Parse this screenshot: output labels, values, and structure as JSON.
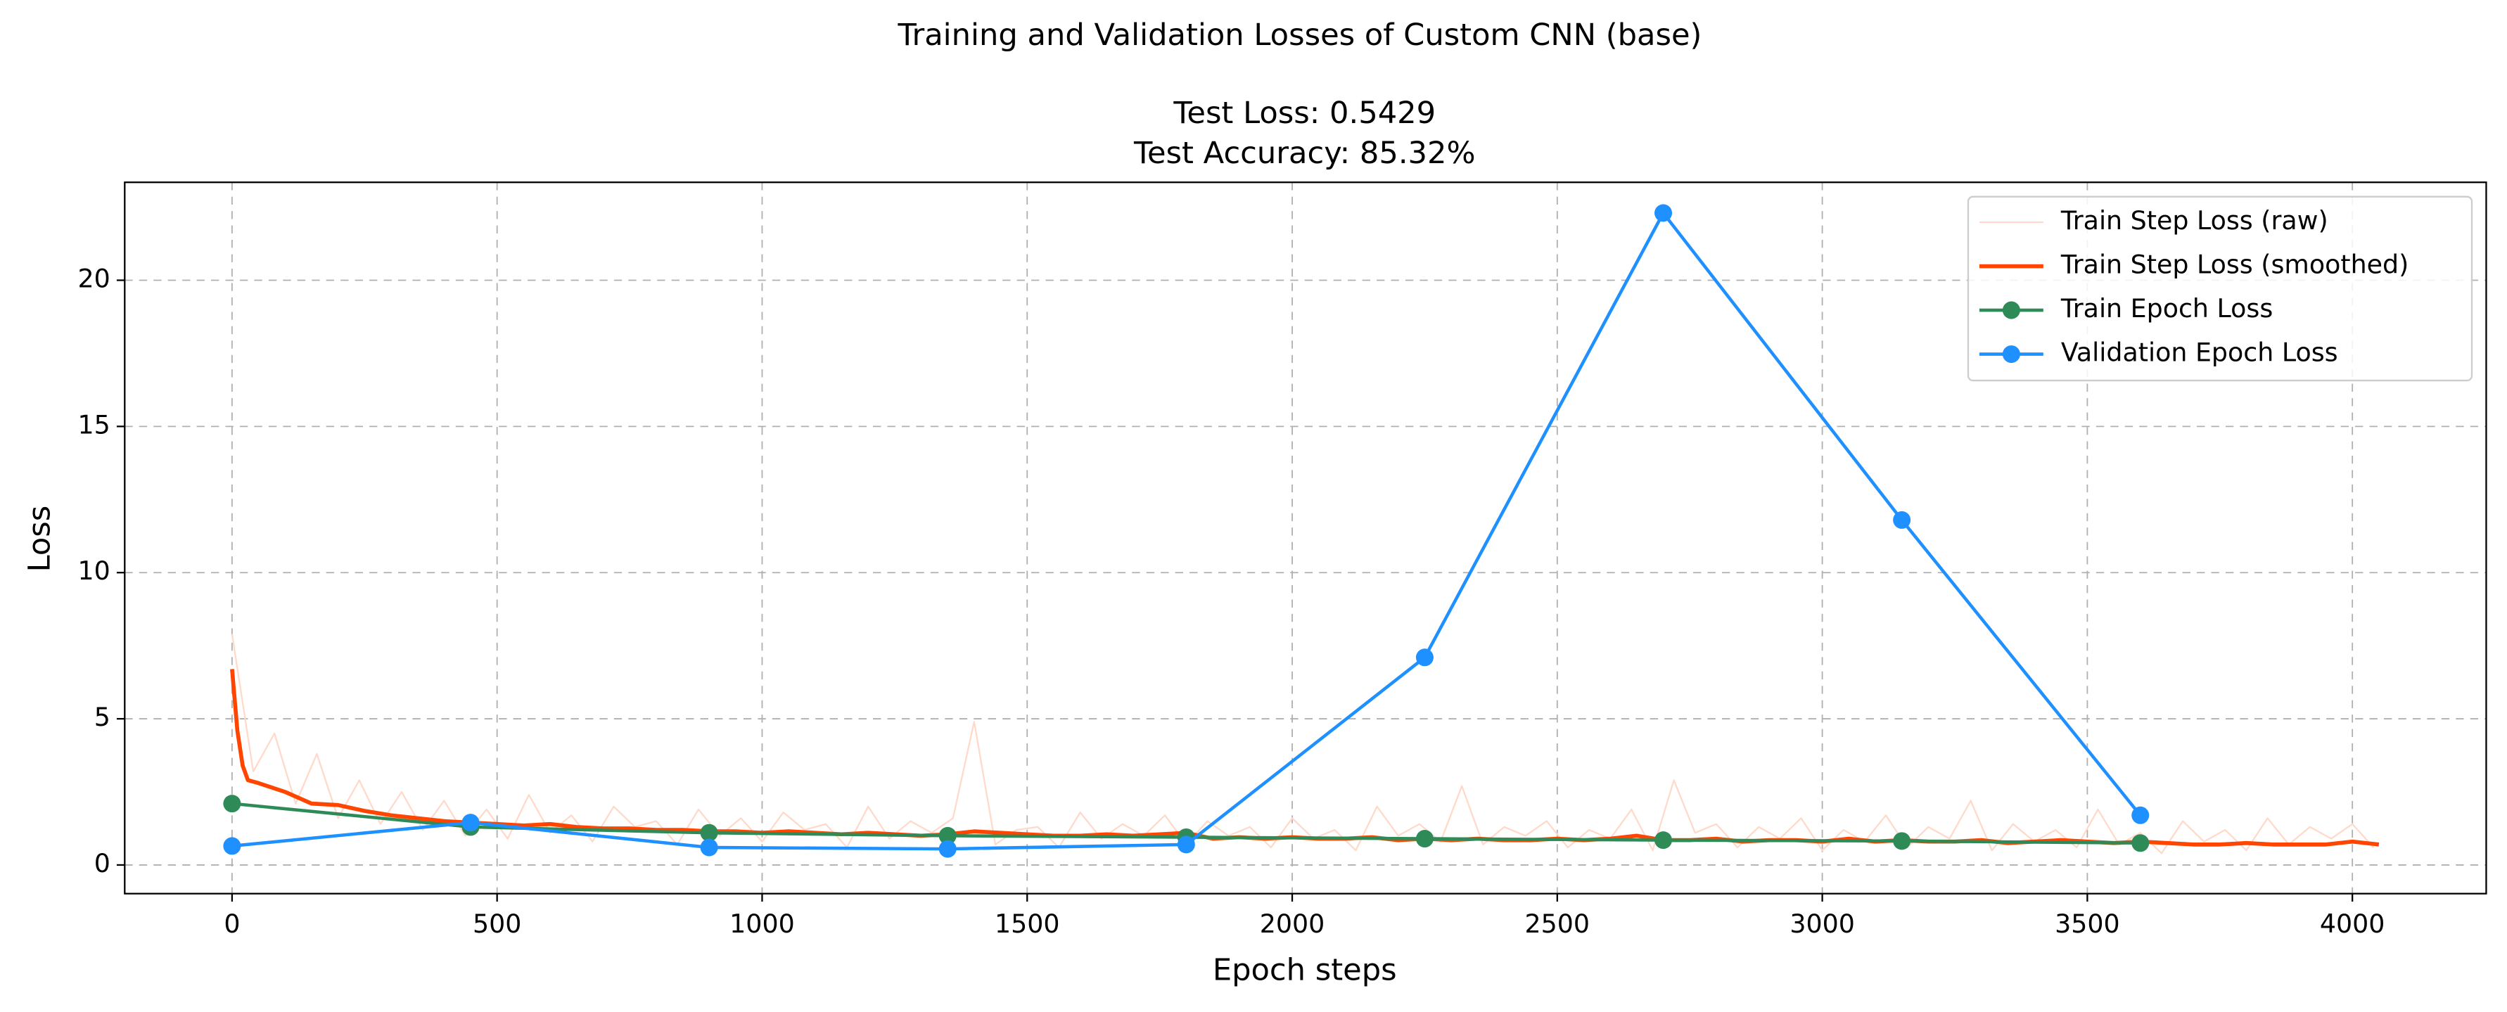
{
  "chart_data": {
    "type": "line",
    "title": "Training and Validation Losses of Custom CNN (base)",
    "subtitle": [
      "Test Loss: 0.5429",
      "Test Accuracy: 85.32%"
    ],
    "xlabel": "Epoch steps",
    "ylabel": "Loss",
    "xlim": [
      -202.5,
      4252.5
    ],
    "xticks": [
      0,
      500,
      1000,
      1500,
      2000,
      2500,
      3000,
      3500,
      4000
    ],
    "ylim": [
      -0.98,
      23.35
    ],
    "yticks": [
      0,
      5,
      10,
      15,
      20
    ],
    "grid": true,
    "legend": "upper right",
    "series": [
      {
        "name": "Train Step Loss (raw)",
        "color": "#ffd9c9",
        "width": 1,
        "marker": false,
        "x": [
          0,
          40,
          80,
          120,
          160,
          200,
          240,
          280,
          320,
          360,
          400,
          440,
          480,
          520,
          560,
          600,
          640,
          680,
          720,
          760,
          800,
          840,
          880,
          920,
          960,
          1000,
          1040,
          1080,
          1120,
          1160,
          1200,
          1240,
          1280,
          1320,
          1360,
          1400,
          1440,
          1480,
          1520,
          1560,
          1600,
          1640,
          1680,
          1720,
          1760,
          1800,
          1840,
          1880,
          1920,
          1960,
          2000,
          2040,
          2080,
          2120,
          2160,
          2200,
          2240,
          2280,
          2320,
          2360,
          2400,
          2440,
          2480,
          2520,
          2560,
          2600,
          2640,
          2680,
          2720,
          2760,
          2800,
          2840,
          2880,
          2920,
          2960,
          3000,
          3040,
          3080,
          3120,
          3160,
          3200,
          3240,
          3280,
          3320,
          3360,
          3400,
          3440,
          3480,
          3520,
          3560,
          3600,
          3640,
          3680,
          3720,
          3760,
          3800,
          3840,
          3880,
          3920,
          3960,
          4000,
          4040
        ],
        "values": [
          7.9,
          3.2,
          4.5,
          2.1,
          3.8,
          1.6,
          2.9,
          1.4,
          2.5,
          1.2,
          2.2,
          1.0,
          1.9,
          0.9,
          2.4,
          1.1,
          1.7,
          0.8,
          2.0,
          1.3,
          1.5,
          0.7,
          1.9,
          1.0,
          1.6,
          0.8,
          1.8,
          1.2,
          1.4,
          0.6,
          2.0,
          0.9,
          1.5,
          1.1,
          1.6,
          4.9,
          0.7,
          1.2,
          1.3,
          0.6,
          1.8,
          0.9,
          1.4,
          1.0,
          1.7,
          0.7,
          1.5,
          1.0,
          1.3,
          0.6,
          1.6,
          0.9,
          1.2,
          0.5,
          2.0,
          1.0,
          1.4,
          0.8,
          2.7,
          0.7,
          1.3,
          1.0,
          1.5,
          0.6,
          1.2,
          0.9,
          1.9,
          0.5,
          2.9,
          1.1,
          1.4,
          0.6,
          1.3,
          0.9,
          1.6,
          0.5,
          1.2,
          0.8,
          1.7,
          0.6,
          1.3,
          0.9,
          2.2,
          0.5,
          1.4,
          0.8,
          1.2,
          0.6,
          1.9,
          0.7,
          1.1,
          0.4,
          1.5,
          0.8,
          1.2,
          0.5,
          1.6,
          0.7,
          1.3,
          0.9,
          1.4,
          0.6
        ]
      },
      {
        "name": "Train Step Loss (smoothed)",
        "color": "#ff4500",
        "width": 2.5,
        "marker": false,
        "x": [
          0,
          10,
          20,
          30,
          50,
          100,
          150,
          200,
          250,
          300,
          350,
          400,
          450,
          500,
          550,
          600,
          650,
          700,
          750,
          800,
          850,
          900,
          950,
          1000,
          1050,
          1100,
          1150,
          1200,
          1250,
          1300,
          1350,
          1400,
          1450,
          1500,
          1550,
          1600,
          1650,
          1700,
          1750,
          1800,
          1850,
          1900,
          1950,
          2000,
          2050,
          2100,
          2150,
          2200,
          2250,
          2300,
          2350,
          2400,
          2450,
          2500,
          2550,
          2600,
          2650,
          2700,
          2750,
          2800,
          2850,
          2900,
          2950,
          3000,
          3050,
          3100,
          3150,
          3200,
          3250,
          3300,
          3350,
          3400,
          3450,
          3500,
          3550,
          3600,
          3650,
          3700,
          3750,
          3800,
          3850,
          3900,
          3950,
          4000,
          4050
        ],
        "values": [
          6.7,
          4.6,
          3.4,
          2.9,
          2.8,
          2.5,
          2.1,
          2.05,
          1.85,
          1.7,
          1.6,
          1.5,
          1.45,
          1.4,
          1.35,
          1.4,
          1.3,
          1.25,
          1.25,
          1.2,
          1.2,
          1.15,
          1.15,
          1.1,
          1.15,
          1.1,
          1.05,
          1.1,
          1.05,
          1.0,
          1.05,
          1.15,
          1.1,
          1.05,
          1.0,
          1.0,
          1.05,
          1.0,
          1.05,
          1.1,
          0.9,
          0.95,
          0.9,
          0.95,
          0.9,
          0.9,
          0.95,
          0.85,
          0.9,
          0.85,
          0.9,
          0.85,
          0.85,
          0.9,
          0.85,
          0.9,
          1.0,
          0.85,
          0.85,
          0.9,
          0.8,
          0.85,
          0.85,
          0.8,
          0.9,
          0.8,
          0.85,
          0.8,
          0.8,
          0.85,
          0.75,
          0.8,
          0.85,
          0.8,
          0.75,
          0.8,
          0.75,
          0.7,
          0.7,
          0.75,
          0.7,
          0.7,
          0.7,
          0.8,
          0.7
        ]
      },
      {
        "name": "Train Epoch Loss",
        "color": "#2e8b57",
        "width": 2,
        "marker": true,
        "x": [
          0,
          450,
          900,
          1350,
          1800,
          2250,
          2700,
          3150,
          3600
        ],
        "values": [
          2.1,
          1.3,
          1.1,
          1.0,
          0.95,
          0.9,
          0.85,
          0.82,
          0.75
        ]
      },
      {
        "name": "Validation Epoch Loss",
        "color": "#1e90ff",
        "width": 2,
        "marker": true,
        "x": [
          0,
          450,
          900,
          1350,
          1800,
          2250,
          2700,
          3150,
          3600
        ],
        "values": [
          0.65,
          1.45,
          0.6,
          0.55,
          0.7,
          7.1,
          22.3,
          11.8,
          1.7
        ]
      }
    ]
  }
}
